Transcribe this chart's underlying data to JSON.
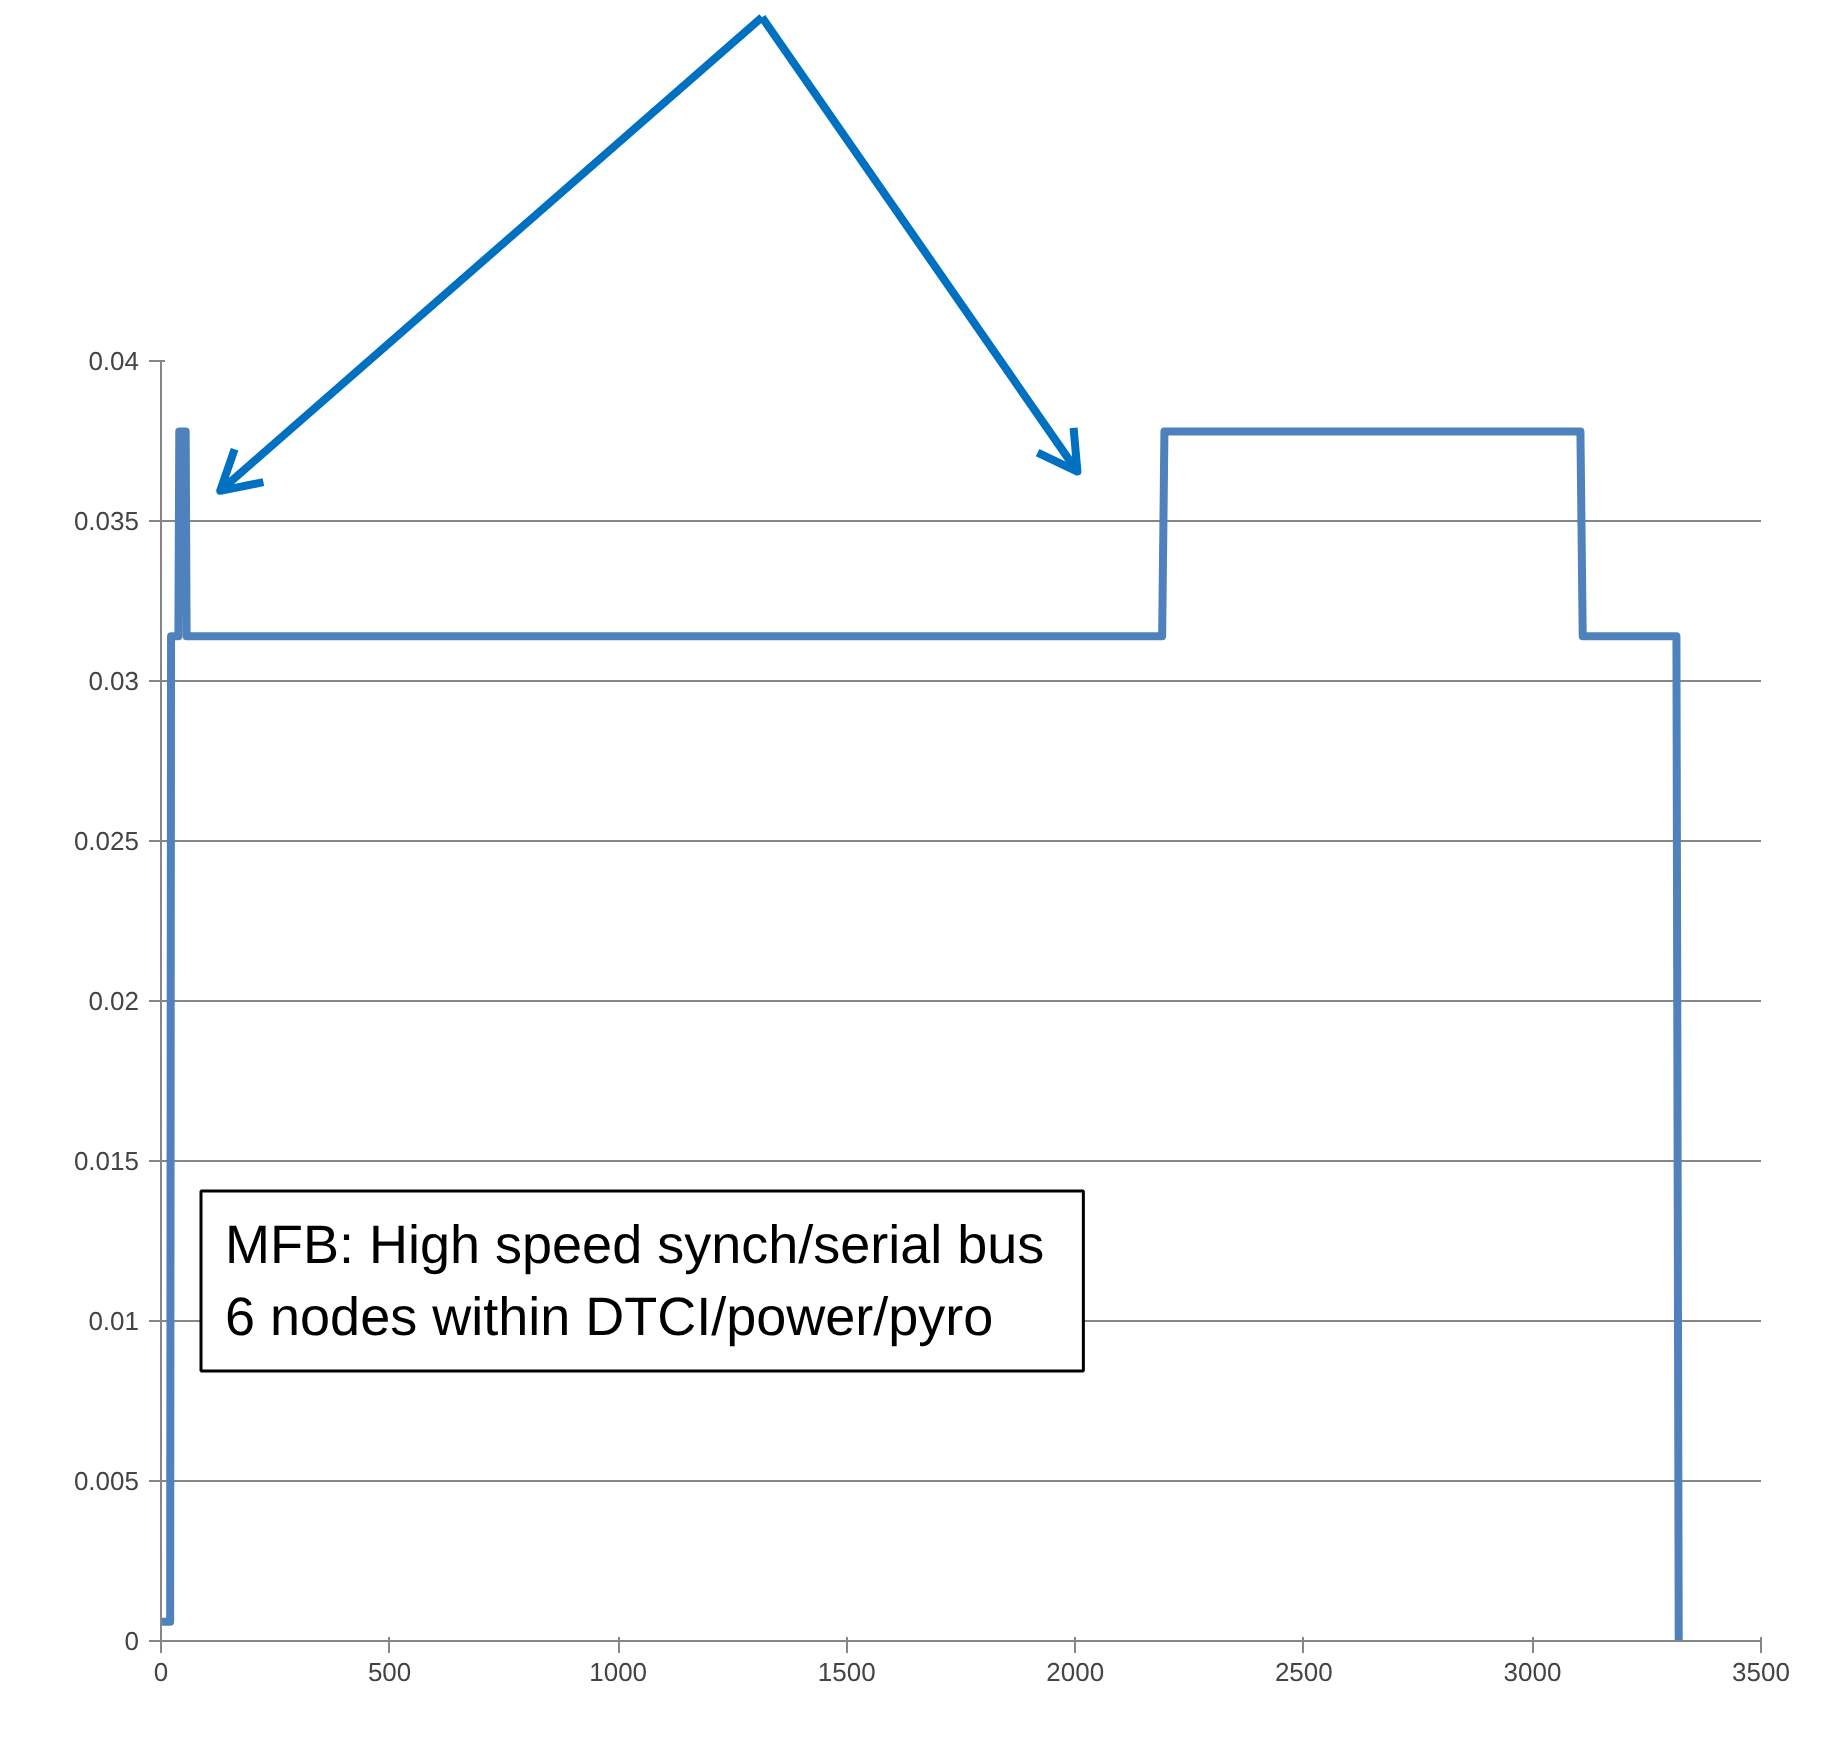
{
  "chart_data": {
    "type": "line",
    "x": [
      0,
      20,
      22,
      38,
      40,
      54,
      56,
      2190,
      2195,
      3105,
      3110,
      3315,
      3320
    ],
    "series": [
      {
        "color": "#4f81bd",
        "values": [
          0.0006,
          0.0006,
          0.0314,
          0.0314,
          0.0378,
          0.0378,
          0.0314,
          0.0314,
          0.0378,
          0.0378,
          0.0314,
          0.0314,
          0
        ]
      }
    ],
    "xlim": [
      0,
      3500
    ],
    "xticks": [
      0,
      500,
      1000,
      1500,
      2000,
      2500,
      3000,
      3500
    ],
    "ylim": [
      0,
      0.04
    ],
    "yticks": [
      0,
      0.005,
      0.01,
      0.015,
      0.02,
      0.025,
      0.03,
      0.035,
      0.04
    ],
    "grid": "y",
    "marker": "none",
    "line_style": "solid",
    "annotations": [
      "MFB:  High speed synch/serial bus\n  6 nodes within DTCI/power/pyro"
    ]
  }
}
